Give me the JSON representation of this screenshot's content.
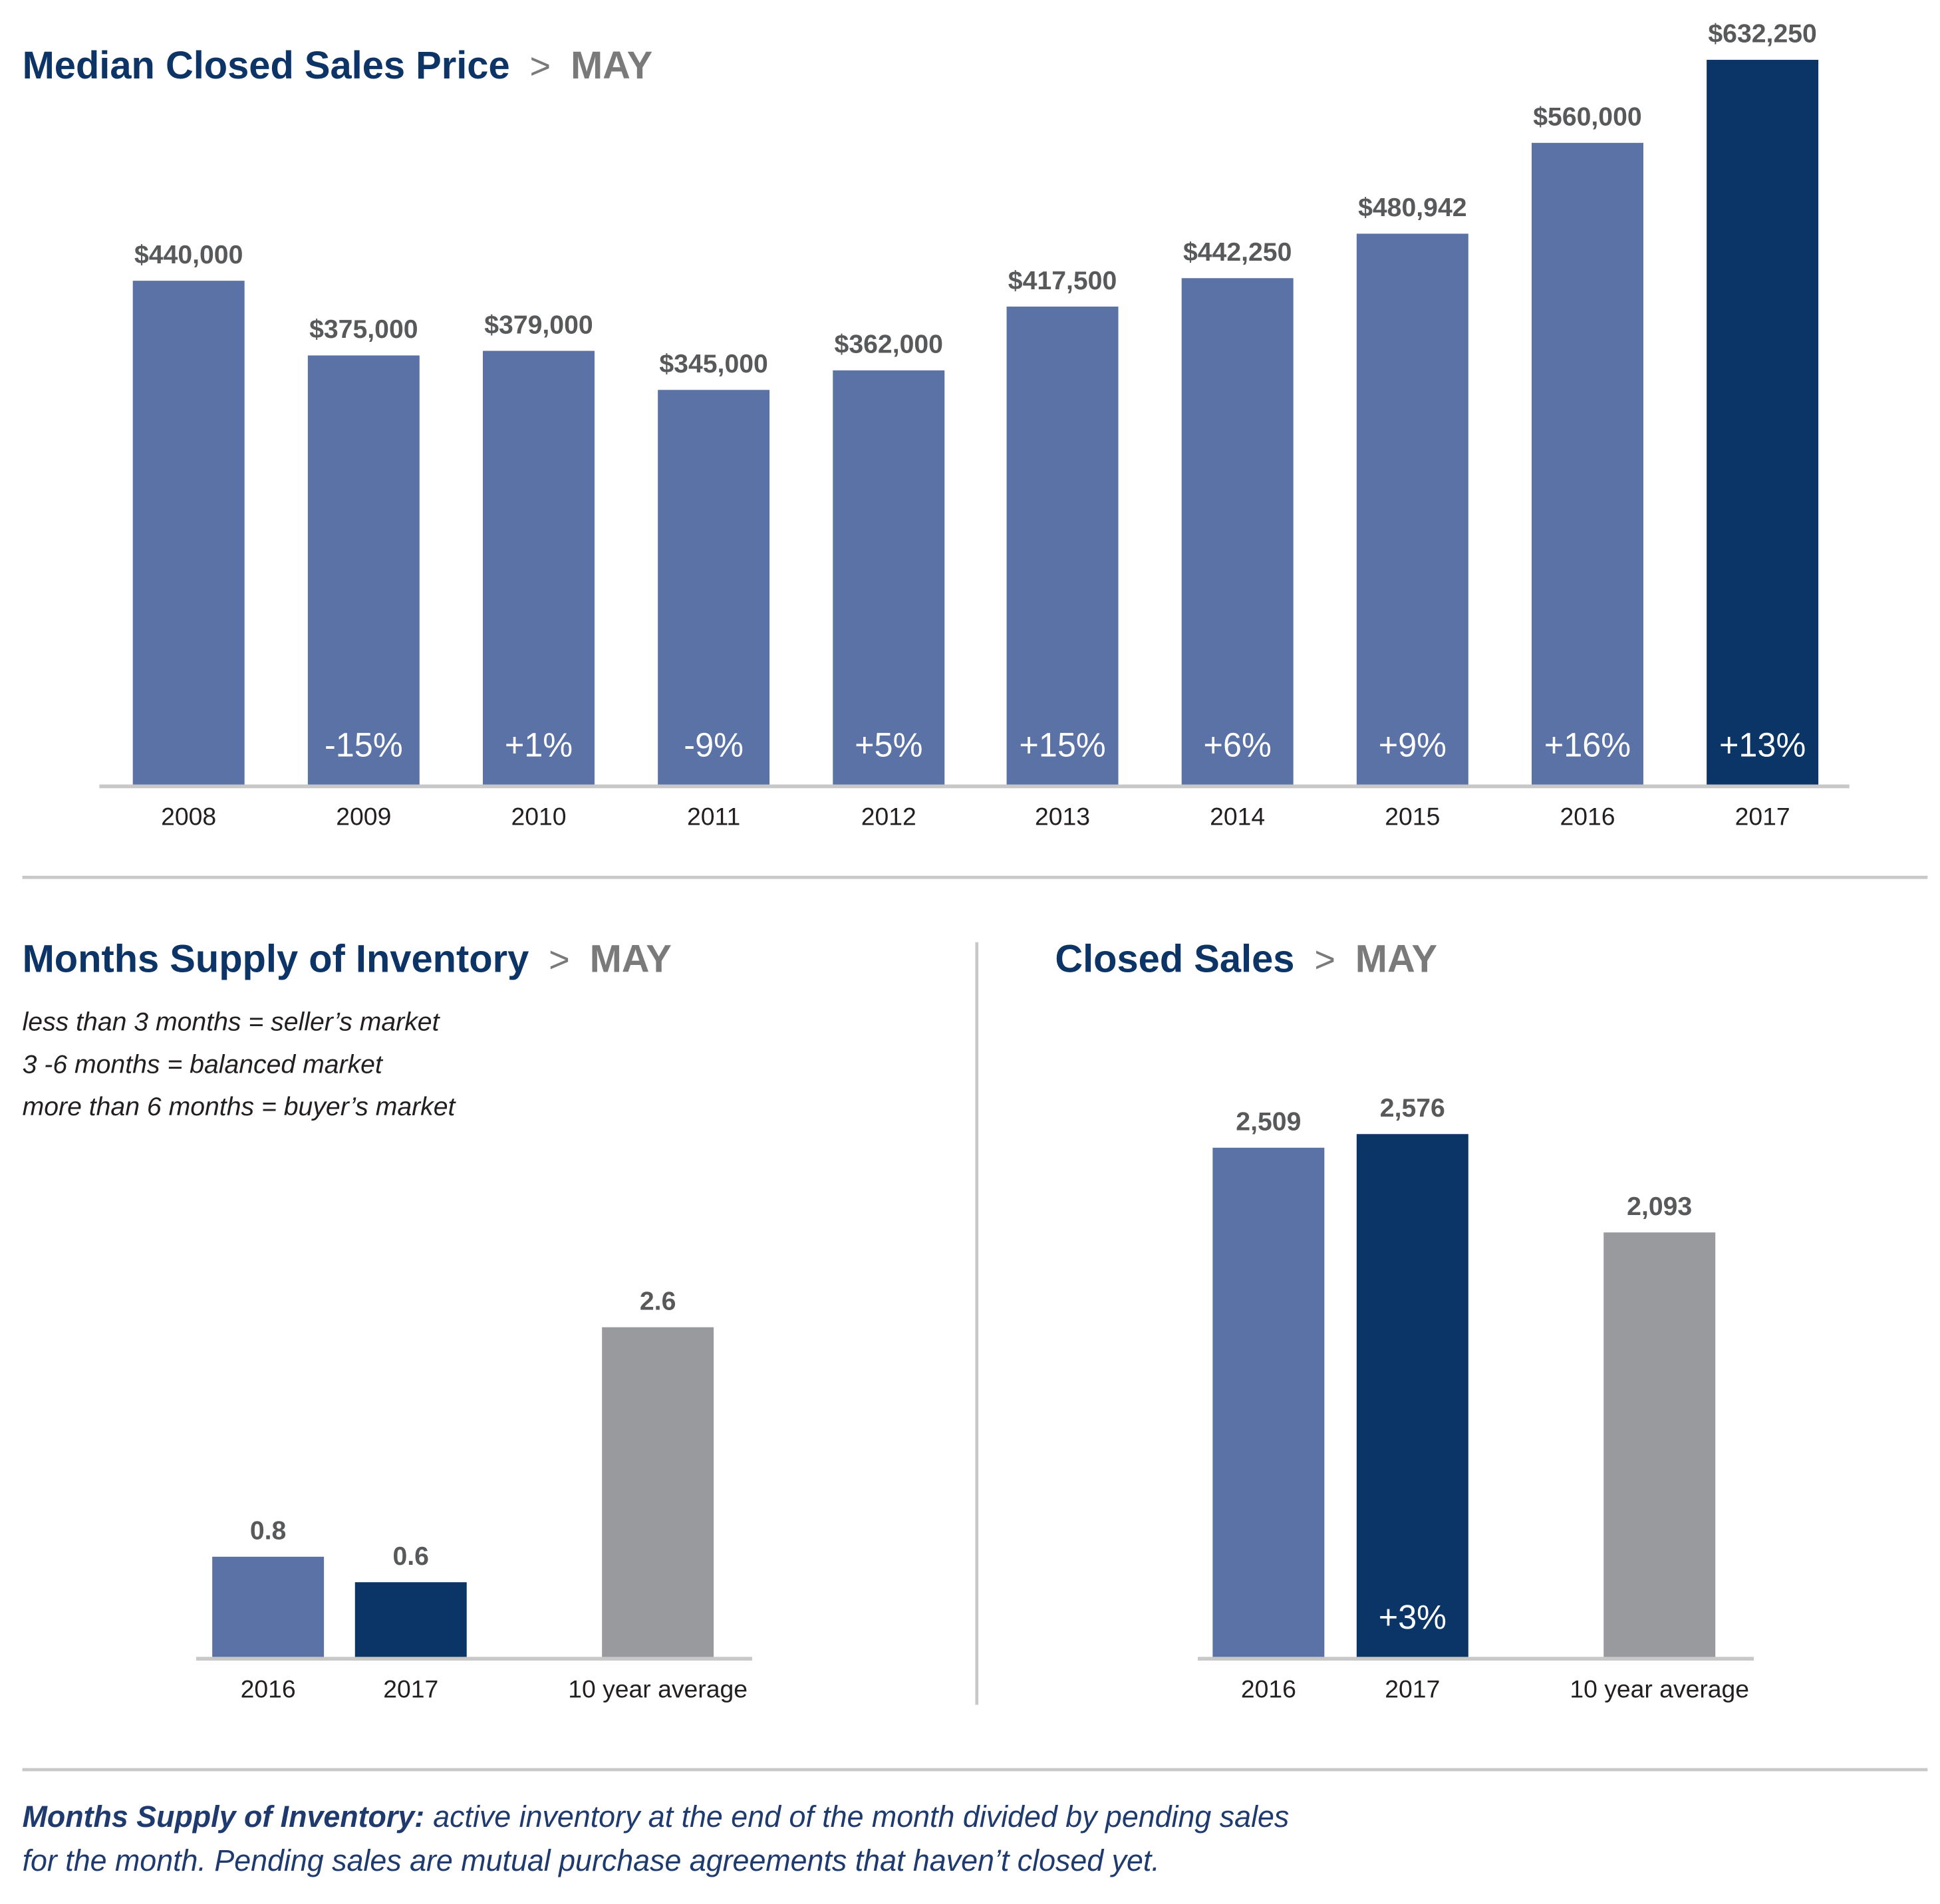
{
  "colors": {
    "bar": "#5a72a5",
    "highlight": "#0a3566",
    "avg": "#999a9e",
    "title": "#0d3466",
    "muted": "#7a7a7a",
    "rule": "#c8c8c8"
  },
  "sections": {
    "price": {
      "title": "Median Closed Sales Price",
      "sep": ">",
      "month": "MAY"
    },
    "supply": {
      "title": "Months Supply of Inventory",
      "sep": ">",
      "month": "MAY",
      "legend": [
        "less than 3 months = seller’s market",
        "3 -6 months = balanced market",
        "more than 6 months = buyer’s market"
      ]
    },
    "closed": {
      "title": "Closed Sales",
      "sep": ">",
      "month": "MAY"
    }
  },
  "footnote": {
    "term": "Months Supply of Inventory:",
    "line1": "active inventory at the end of the month divided by pending sales",
    "line2": "for the month. Pending sales are mutual purchase agreements that haven’t closed yet."
  },
  "chart_data": [
    {
      "type": "bar",
      "title": "Median Closed Sales Price > MAY",
      "categories": [
        "2008",
        "2009",
        "2010",
        "2011",
        "2012",
        "2013",
        "2014",
        "2015",
        "2016",
        "2017"
      ],
      "values": [
        440000,
        375000,
        379000,
        345000,
        362000,
        417500,
        442250,
        480942,
        560000,
        632250
      ],
      "value_labels": [
        "$440,000",
        "$375,000",
        "$379,000",
        "$345,000",
        "$362,000",
        "$417,500",
        "$442,250",
        "$480,942",
        "$560,000",
        "$632,250"
      ],
      "change_labels": [
        "",
        "-15%",
        "+1%",
        "-9%",
        "+5%",
        "+15%",
        "+6%",
        "+9%",
        "+16%",
        "+13%"
      ],
      "highlight_index": 9
    },
    {
      "type": "bar",
      "title": "Months Supply of Inventory > MAY",
      "categories": [
        "2016",
        "2017",
        "10 year average"
      ],
      "values": [
        0.8,
        0.6,
        2.6
      ],
      "value_labels": [
        "0.8",
        "0.6",
        "2.6"
      ],
      "change_labels": [
        "",
        "",
        ""
      ]
    },
    {
      "type": "bar",
      "title": "Closed Sales > MAY",
      "categories": [
        "2016",
        "2017",
        "10 year average"
      ],
      "values": [
        2509,
        2576,
        2093
      ],
      "value_labels": [
        "2,509",
        "2,576",
        "2,093"
      ],
      "change_labels": [
        "",
        "+3%",
        ""
      ]
    }
  ]
}
